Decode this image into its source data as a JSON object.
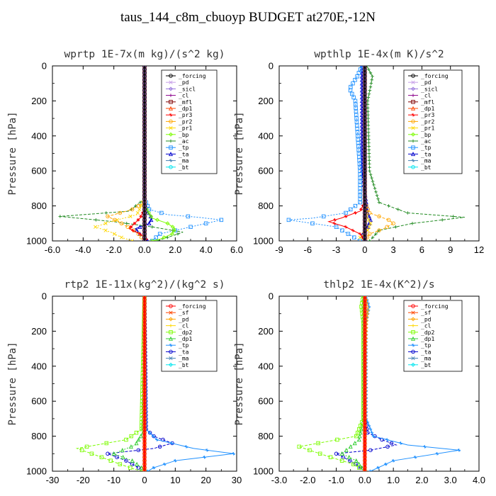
{
  "title": "taus_144_c8m_cbuoyp  BUDGET at270E,-12N",
  "chart_data": [
    {
      "type": "line",
      "title": "wprtp  1E-7x(m kg)/(s^2 kg)",
      "ylabel": "Pressure [hPa]",
      "xlim": [
        -6,
        6
      ],
      "ylim": [
        1000,
        0
      ],
      "xticks": [
        "-6.0",
        "-4.0",
        "-2.0",
        "0.0",
        "2.0",
        "4.0",
        "6.0"
      ],
      "yticks": [
        "0",
        "200",
        "400",
        "600",
        "800",
        "1000"
      ],
      "legend_position": "top-right",
      "series": [
        {
          "name": "_forcing",
          "color": "#000000",
          "x": [
            0,
            0,
            0,
            0,
            0
          ],
          "y": [
            0,
            250,
            500,
            750,
            1000
          ]
        },
        {
          "name": "_pd",
          "color": "#c8a0e8",
          "x": [
            0,
            0,
            0
          ],
          "y": [
            0,
            500,
            1000
          ]
        },
        {
          "name": "_sicl",
          "color": "#9370db",
          "x": [
            0,
            0,
            0
          ],
          "y": [
            0,
            500,
            1000
          ]
        },
        {
          "name": "_cl",
          "color": "#8b008b",
          "x": [
            0,
            0,
            0
          ],
          "y": [
            0,
            500,
            1000
          ]
        },
        {
          "name": "_mfl",
          "color": "#800000",
          "x": [
            0,
            0,
            0
          ],
          "y": [
            0,
            500,
            1000
          ]
        },
        {
          "name": "_dp1",
          "color": "#ff4500",
          "x": [
            0,
            0,
            0
          ],
          "y": [
            0,
            500,
            1000
          ]
        },
        {
          "name": "_pr3",
          "color": "#ff0000",
          "x": [
            0,
            0,
            0,
            0,
            -0.3,
            -1.0,
            -0.3,
            0.2,
            0
          ],
          "y": [
            0,
            400,
            760,
            820,
            870,
            930,
            960,
            990,
            1000
          ]
        },
        {
          "name": "_pr2",
          "color": "#ffa500",
          "x": [
            0,
            0,
            0,
            -0.8,
            -2.4,
            -1.5,
            -0.5,
            0
          ],
          "y": [
            0,
            400,
            780,
            820,
            860,
            900,
            950,
            1000
          ]
        },
        {
          "name": "_pr1",
          "color": "#ffd700",
          "x": [
            0,
            0,
            -0.5,
            -2.2,
            -3.2,
            -2.2,
            -1.5,
            -0.8
          ],
          "y": [
            0,
            760,
            850,
            890,
            920,
            950,
            980,
            1000
          ]
        },
        {
          "name": "_bp",
          "color": "#7cfc00",
          "x": [
            0,
            0,
            0.5,
            1.5,
            2.0,
            1.8,
            1.0,
            0.5
          ],
          "y": [
            0,
            800,
            870,
            900,
            930,
            960,
            990,
            1000
          ]
        },
        {
          "name": "_ac",
          "color": "#228b22",
          "x": [
            0,
            0,
            -1.0,
            -5.5,
            -2.0,
            0.5,
            2.5,
            1.5,
            0.8
          ],
          "y": [
            0,
            760,
            830,
            860,
            890,
            920,
            950,
            980,
            1000
          ]
        },
        {
          "name": "_tp",
          "color": "#1e90ff",
          "x": [
            0,
            0,
            0.3,
            1.5,
            3.5,
            5.0,
            3.0,
            1.0,
            0.5
          ],
          "y": [
            0,
            760,
            820,
            850,
            865,
            880,
            920,
            960,
            1000
          ]
        },
        {
          "name": "_ta",
          "color": "#0000cd",
          "x": [
            0,
            0,
            0.2,
            0.5,
            0.3,
            -0.6,
            -0.3,
            0.2
          ],
          "y": [
            0,
            780,
            840,
            870,
            900,
            930,
            960,
            1000
          ]
        },
        {
          "name": "_ma",
          "color": "#4682b4",
          "x": [
            0,
            0,
            0
          ],
          "y": [
            0,
            500,
            1000
          ]
        },
        {
          "name": "_bt",
          "color": "#00e5ee",
          "x": [
            0,
            0,
            0
          ],
          "y": [
            0,
            500,
            1000
          ]
        }
      ]
    },
    {
      "type": "line",
      "title": "wpthlp  1E-4x(m K)/s^2",
      "ylabel": "Pressure [hPa]",
      "xlim": [
        -9,
        12
      ],
      "ylim": [
        1000,
        0
      ],
      "xticks": [
        "-9",
        "-6",
        "-3",
        "0",
        "3",
        "6",
        "9",
        "12"
      ],
      "yticks": [
        "0",
        "200",
        "400",
        "600",
        "800",
        "1000"
      ],
      "legend_position": "top-right",
      "series": [
        {
          "name": "_forcing",
          "color": "#000000",
          "x": [
            0,
            0,
            0,
            0,
            0
          ],
          "y": [
            0,
            250,
            500,
            750,
            1000
          ]
        },
        {
          "name": "_pd",
          "color": "#c8a0e8",
          "x": [
            0,
            0,
            0
          ],
          "y": [
            0,
            500,
            1000
          ]
        },
        {
          "name": "_sicl",
          "color": "#9370db",
          "x": [
            0,
            0,
            0
          ],
          "y": [
            0,
            500,
            1000
          ]
        },
        {
          "name": "_cl",
          "color": "#8b008b",
          "x": [
            0,
            0,
            0
          ],
          "y": [
            0,
            500,
            1000
          ]
        },
        {
          "name": "_mfl",
          "color": "#800000",
          "x": [
            0,
            0,
            0
          ],
          "y": [
            0,
            500,
            1000
          ]
        },
        {
          "name": "_dp1",
          "color": "#ff4500",
          "x": [
            0,
            0,
            0
          ],
          "y": [
            0,
            500,
            1000
          ]
        },
        {
          "name": "_pr3",
          "color": "#ff0000",
          "x": [
            0,
            0,
            -0.5,
            -2.5,
            -3.8,
            -2.0,
            -0.5,
            0
          ],
          "y": [
            0,
            780,
            830,
            870,
            890,
            920,
            960,
            1000
          ]
        },
        {
          "name": "_pr2",
          "color": "#ffa500",
          "x": [
            0,
            0,
            0.5,
            2.5,
            3.0,
            2.0,
            0.5,
            0
          ],
          "y": [
            0,
            780,
            840,
            880,
            900,
            930,
            960,
            1000
          ]
        },
        {
          "name": "_pr1",
          "color": "#ffd700",
          "x": [
            0,
            0,
            0.2,
            0.6,
            0.3,
            -0.5,
            0
          ],
          "y": [
            0,
            800,
            860,
            900,
            940,
            980,
            1000
          ]
        },
        {
          "name": "_bp",
          "color": "#7cfc00",
          "x": [
            0,
            0,
            0,
            0
          ],
          "y": [
            0,
            500,
            900,
            1000
          ]
        },
        {
          "name": "_ac",
          "color": "#228b22",
          "x": [
            0.2,
            0.8,
            0.6,
            0.3,
            0.5,
            1.5,
            4.5,
            10.5,
            5.0,
            1.5,
            0.5
          ],
          "y": [
            0,
            60,
            120,
            200,
            600,
            780,
            840,
            865,
            900,
            940,
            1000
          ]
        },
        {
          "name": "_tp",
          "color": "#1e90ff",
          "x": [
            -0.3,
            -0.8,
            -1.6,
            -1.0,
            -0.5,
            -0.5,
            -2.0,
            -5.5,
            -8.0,
            -3.0,
            -0.5
          ],
          "y": [
            0,
            60,
            130,
            200,
            600,
            780,
            840,
            870,
            880,
            920,
            1000
          ]
        },
        {
          "name": "_ta",
          "color": "#0000cd",
          "x": [
            -0.3,
            -0.3,
            -0.3,
            0.3,
            0.6,
            0.3,
            -0.2,
            0
          ],
          "y": [
            0,
            100,
            600,
            840,
            880,
            920,
            960,
            1000
          ]
        },
        {
          "name": "_ma",
          "color": "#4682b4",
          "x": [
            0,
            0,
            0
          ],
          "y": [
            0,
            500,
            1000
          ]
        },
        {
          "name": "_bt",
          "color": "#00e5ee",
          "x": [
            0,
            0,
            0
          ],
          "y": [
            0,
            500,
            1000
          ]
        }
      ]
    },
    {
      "type": "line",
      "title": "rtp2  1E-11x(kg^2)/(kg^2 s)",
      "ylabel": "Pressure [hPa]",
      "xlim": [
        -30,
        30
      ],
      "ylim": [
        1000,
        0
      ],
      "xticks": [
        "-30",
        "-20",
        "-10",
        "0",
        "10",
        "20",
        "30"
      ],
      "yticks": [
        "0",
        "200",
        "400",
        "600",
        "800",
        "1000"
      ],
      "legend_position": "top-right",
      "series": [
        {
          "name": "_forcing",
          "color": "#ff0000",
          "x": [
            0,
            0,
            0,
            0,
            0
          ],
          "y": [
            0,
            250,
            500,
            750,
            1000
          ]
        },
        {
          "name": "_sf",
          "color": "#ff4500",
          "x": [
            0,
            0,
            0
          ],
          "y": [
            0,
            500,
            1000
          ]
        },
        {
          "name": "_pd",
          "color": "#ffa500",
          "x": [
            0,
            0,
            0
          ],
          "y": [
            0,
            500,
            1000
          ]
        },
        {
          "name": "_cl",
          "color": "#ffd700",
          "x": [
            0,
            0,
            0
          ],
          "y": [
            0,
            500,
            1000
          ]
        },
        {
          "name": "_dp2",
          "color": "#7cfc00",
          "x": [
            0,
            -1.0,
            -6,
            -22,
            -14,
            -8,
            -3,
            0
          ],
          "y": [
            0,
            760,
            820,
            870,
            920,
            960,
            990,
            1000
          ]
        },
        {
          "name": "_dp1",
          "color": "#32cd32",
          "x": [
            0,
            -0.5,
            -3,
            -10,
            -4,
            -1,
            0
          ],
          "y": [
            0,
            780,
            850,
            900,
            940,
            980,
            1000
          ]
        },
        {
          "name": "_tp",
          "color": "#1e90ff",
          "x": [
            0,
            0.5,
            4,
            16,
            29,
            10,
            3,
            1
          ],
          "y": [
            0,
            760,
            820,
            870,
            900,
            940,
            980,
            1000
          ]
        },
        {
          "name": "_ta",
          "color": "#0000cd",
          "x": [
            0,
            0.5,
            3,
            9,
            3,
            -12,
            -6,
            -2,
            0
          ],
          "y": [
            0,
            760,
            800,
            840,
            870,
            900,
            940,
            980,
            1000
          ]
        },
        {
          "name": "_ma",
          "color": "#4682b4",
          "x": [
            0,
            0,
            0
          ],
          "y": [
            0,
            500,
            1000
          ]
        },
        {
          "name": "_bt",
          "color": "#00e5ee",
          "x": [
            0,
            0,
            0
          ],
          "y": [
            0,
            500,
            1000
          ]
        }
      ]
    },
    {
      "type": "line",
      "title": "thlp2  1E-4x(K^2)/s",
      "ylabel": "Pressure [hPa]",
      "xlim": [
        -3,
        4
      ],
      "ylim": [
        1000,
        0
      ],
      "xticks": [
        "-3.0",
        "-2.0",
        "-1.0",
        "0.0",
        "1.0",
        "2.0",
        "3.0",
        "4.0"
      ],
      "yticks": [
        "0",
        "200",
        "400",
        "600",
        "800",
        "1000"
      ],
      "legend_position": "top-right",
      "series": [
        {
          "name": "_forcing",
          "color": "#ff0000",
          "x": [
            0,
            0,
            0,
            0,
            0
          ],
          "y": [
            0,
            250,
            500,
            750,
            1000
          ]
        },
        {
          "name": "_sf",
          "color": "#ff4500",
          "x": [
            0,
            0,
            0
          ],
          "y": [
            0,
            500,
            1000
          ]
        },
        {
          "name": "_pd",
          "color": "#ffa500",
          "x": [
            0.02,
            0.1,
            0.05,
            0.02,
            0
          ],
          "y": [
            0,
            80,
            150,
            300,
            1000
          ]
        },
        {
          "name": "_cl",
          "color": "#ffd700",
          "x": [
            0,
            0,
            0
          ],
          "y": [
            0,
            500,
            1000
          ]
        },
        {
          "name": "_dp2",
          "color": "#7cfc00",
          "x": [
            -0.05,
            -0.12,
            -0.05,
            -0.05,
            -0.3,
            -2.3,
            -1.2,
            -0.4,
            0
          ],
          "y": [
            0,
            60,
            150,
            700,
            800,
            860,
            920,
            960,
            1000
          ]
        },
        {
          "name": "_dp1",
          "color": "#32cd32",
          "x": [
            -0.05,
            -0.05,
            -0.2,
            -0.8,
            -0.3,
            -0.1,
            0
          ],
          "y": [
            0,
            700,
            820,
            900,
            940,
            980,
            1000
          ]
        },
        {
          "name": "_tp",
          "color": "#1e90ff",
          "x": [
            0.05,
            0.15,
            0.05,
            0.05,
            0.3,
            1.5,
            3.3,
            1.0,
            0.2
          ],
          "y": [
            0,
            60,
            150,
            700,
            800,
            850,
            880,
            940,
            1000
          ]
        },
        {
          "name": "_ta",
          "color": "#0000cd",
          "x": [
            0,
            0,
            0.1,
            0.6,
            1.1,
            0.2,
            -1.0,
            -0.4,
            0
          ],
          "y": [
            0,
            700,
            780,
            820,
            850,
            880,
            900,
            950,
            1000
          ]
        },
        {
          "name": "_ma",
          "color": "#4682b4",
          "x": [
            0,
            0,
            0
          ],
          "y": [
            0,
            500,
            1000
          ]
        },
        {
          "name": "_bt",
          "color": "#00e5ee",
          "x": [
            0,
            0,
            0
          ],
          "y": [
            0,
            500,
            1000
          ]
        }
      ]
    }
  ]
}
